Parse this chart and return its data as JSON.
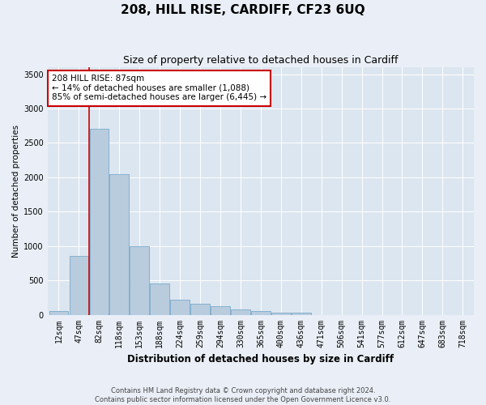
{
  "title": "208, HILL RISE, CARDIFF, CF23 6UQ",
  "subtitle": "Size of property relative to detached houses in Cardiff",
  "xlabel": "Distribution of detached houses by size in Cardiff",
  "ylabel": "Number of detached properties",
  "footer_line1": "Contains HM Land Registry data © Crown copyright and database right 2024.",
  "footer_line2": "Contains public sector information licensed under the Open Government Licence v3.0.",
  "categories": [
    "12sqm",
    "47sqm",
    "82sqm",
    "118sqm",
    "153sqm",
    "188sqm",
    "224sqm",
    "259sqm",
    "294sqm",
    "330sqm",
    "365sqm",
    "400sqm",
    "436sqm",
    "471sqm",
    "506sqm",
    "541sqm",
    "577sqm",
    "612sqm",
    "647sqm",
    "683sqm",
    "718sqm"
  ],
  "values": [
    55,
    855,
    2700,
    2050,
    1000,
    450,
    215,
    160,
    130,
    75,
    50,
    35,
    30,
    0,
    0,
    0,
    0,
    0,
    0,
    0,
    0
  ],
  "bar_color": "#b8ccde",
  "bar_edge_color": "#7aaacb",
  "vline_x": 1.5,
  "vline_color": "#cc0000",
  "annotation_text": "208 HILL RISE: 87sqm\n← 14% of detached houses are smaller (1,088)\n85% of semi-detached houses are larger (6,445) →",
  "annotation_box_color": "#cc0000",
  "annotation_fill": "white",
  "ylim": [
    0,
    3600
  ],
  "yticks": [
    0,
    500,
    1000,
    1500,
    2000,
    2500,
    3000,
    3500
  ],
  "bg_color": "#eaeff7",
  "plot_bg_color": "#dce6f0",
  "title_fontsize": 11,
  "subtitle_fontsize": 9,
  "annotation_fontsize": 7.5,
  "ylabel_fontsize": 7.5,
  "xlabel_fontsize": 8.5,
  "tick_fontsize": 7,
  "footer_fontsize": 6
}
